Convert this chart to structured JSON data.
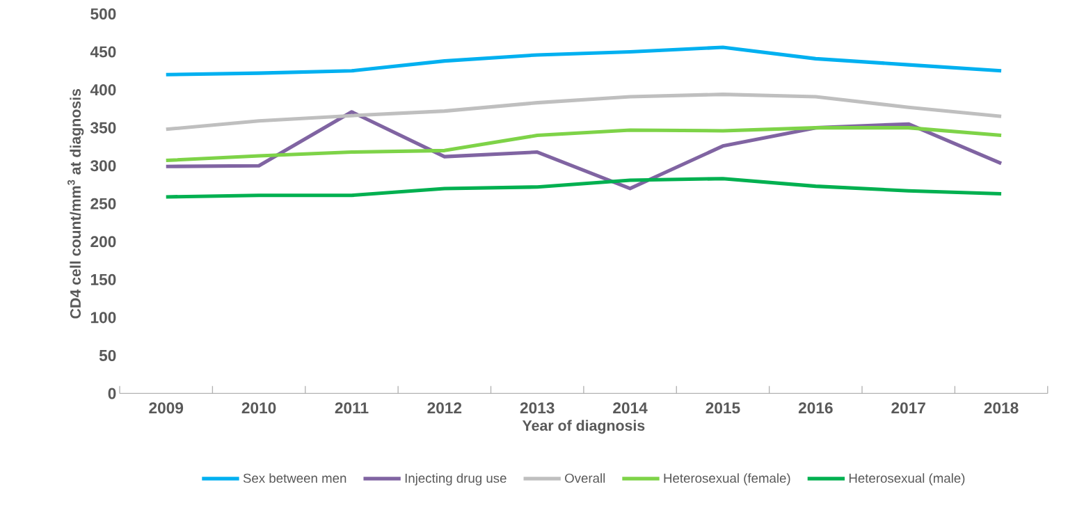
{
  "chart_data": {
    "type": "line",
    "xlabel": "Year of diagnosis",
    "ylabel": "CD4 cell count/mm$^{3}$ at diagnosis",
    "categories": [
      "2009",
      "2010",
      "2011",
      "2012",
      "2013",
      "2014",
      "2015",
      "2016",
      "2017",
      "2018"
    ],
    "ylim": [
      0,
      500
    ],
    "yticks": [
      0,
      50,
      100,
      150,
      200,
      250,
      300,
      350,
      400,
      450,
      500
    ],
    "grid": false,
    "legend": "bottom",
    "marker": "none",
    "line_style": "solid",
    "series": [
      {
        "name": "Sex between men",
        "color": "#00b0f0",
        "values": [
          420,
          422,
          425,
          438,
          446,
          450,
          456,
          441,
          433,
          425
        ]
      },
      {
        "name": "Injecting drug use",
        "color": "#8064a2",
        "values": [
          299,
          300,
          371,
          312,
          318,
          270,
          326,
          350,
          355,
          303
        ]
      },
      {
        "name": "Overall",
        "color": "#bfbfbf",
        "values": [
          348,
          359,
          366,
          372,
          383,
          391,
          394,
          391,
          377,
          365
        ]
      },
      {
        "name": "Heterosexual (female)",
        "color": "#7ed348",
        "values": [
          307,
          313,
          318,
          320,
          340,
          347,
          346,
          350,
          350,
          340
        ]
      },
      {
        "name": "Heterosexual (male)",
        "color": "#00b050",
        "values": [
          259,
          261,
          261,
          270,
          272,
          281,
          283,
          273,
          267,
          263
        ]
      }
    ]
  }
}
